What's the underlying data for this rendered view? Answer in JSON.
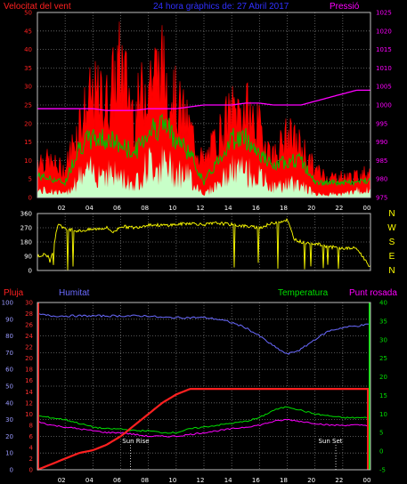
{
  "header": {
    "left": "Velocitat del vent",
    "center": "24 hora gràphics de:   27 Abril 2017",
    "right": "Pressió"
  },
  "colors": {
    "wind_max": "#ff0000",
    "wind_avg": "#00c000",
    "wind_min": "#c8ffc8",
    "pressure": "#ff00ff",
    "direction": "#ffff00",
    "rain": "#ff2020",
    "humidity": "#6a6aff",
    "temperature": "#00e000",
    "dewpoint": "#ff00ff",
    "grid": "#707070",
    "axis": "#c0c0c0"
  },
  "x_ticks": [
    "02",
    "04",
    "06",
    "08",
    "10",
    "12",
    "14",
    "16",
    "18",
    "20",
    "22",
    "00"
  ],
  "chart_data": [
    {
      "type": "area",
      "name": "wind",
      "left_axis": {
        "label": "Velocitat del vent",
        "ticks": [
          0,
          5,
          10,
          15,
          20,
          25,
          30,
          35,
          40,
          45,
          50
        ],
        "range": [
          0,
          50
        ]
      },
      "right_axis": {
        "label": "Pressió",
        "ticks": [
          975,
          980,
          985,
          990,
          995,
          1000,
          1005,
          1010,
          1015,
          1020,
          1025
        ],
        "range": [
          975,
          1025
        ]
      },
      "x_hours": [
        0,
        1,
        2,
        3,
        4,
        5,
        6,
        7,
        8,
        9,
        10,
        11,
        12,
        13,
        14,
        15,
        16,
        17,
        18,
        19,
        20,
        21,
        22,
        23,
        24
      ],
      "gust": [
        12,
        10,
        8,
        22,
        30,
        28,
        40,
        24,
        36,
        38,
        28,
        20,
        10,
        18,
        25,
        26,
        20,
        12,
        18,
        15,
        8,
        6,
        6,
        6,
        8
      ],
      "average": [
        6,
        5,
        4,
        14,
        16,
        16,
        14,
        12,
        18,
        20,
        16,
        12,
        4,
        10,
        16,
        16,
        12,
        8,
        10,
        10,
        4,
        4,
        4,
        4,
        5
      ],
      "minimum": [
        2,
        2,
        1,
        6,
        8,
        8,
        6,
        4,
        10,
        10,
        8,
        6,
        1,
        4,
        8,
        8,
        6,
        3,
        4,
        4,
        1,
        1,
        1,
        2,
        2
      ],
      "pressure": [
        999,
        999,
        999,
        999,
        999,
        998.5,
        998.5,
        998.5,
        999,
        999,
        999,
        999.5,
        1000,
        1000,
        1000,
        1000.5,
        1000.5,
        1000,
        1000,
        1000,
        1001,
        1002,
        1003,
        1004,
        1004
      ],
      "grid": true
    },
    {
      "type": "scatter",
      "name": "direction",
      "left_axis": {
        "ticks": [
          0,
          90,
          180,
          270,
          360
        ],
        "range": [
          0,
          360
        ]
      },
      "right_axis": {
        "labels": [
          "N",
          "W",
          "S",
          "E",
          "N"
        ]
      },
      "x_hours": [
        0,
        0.5,
        1,
        1.5,
        2,
        3,
        4,
        5,
        5.5,
        6,
        7,
        8,
        9,
        10,
        11,
        12,
        13,
        14,
        15,
        16,
        17,
        18,
        18.5,
        19,
        20,
        21,
        22,
        23,
        23.5,
        24
      ],
      "values": [
        90,
        100,
        80,
        300,
        260,
        250,
        260,
        270,
        240,
        280,
        270,
        290,
        285,
        290,
        300,
        290,
        300,
        290,
        280,
        270,
        300,
        320,
        200,
        180,
        170,
        150,
        140,
        140,
        80,
        20
      ],
      "grid": true
    },
    {
      "type": "line",
      "name": "climate",
      "labels": {
        "rain": "Pluja",
        "humidity": "Humitat",
        "temperature": "Temperatura",
        "dewpoint": "Punt rosada"
      },
      "humidity_axis": {
        "ticks": [
          0,
          10,
          20,
          30,
          40,
          50,
          60,
          70,
          80,
          90,
          100
        ],
        "range": [
          0,
          100
        ]
      },
      "rain_axis": {
        "ticks": [
          0,
          2,
          4,
          6,
          8,
          10,
          12,
          14,
          16,
          18,
          20,
          22,
          24,
          26,
          28,
          30
        ],
        "range": [
          0,
          30
        ]
      },
      "temp_axis": {
        "ticks": [
          -5,
          0,
          5,
          10,
          15,
          20,
          25,
          30,
          35,
          40
        ],
        "range": [
          -5,
          40
        ]
      },
      "x_hours": [
        0,
        1,
        2,
        3,
        4,
        5,
        6,
        7,
        8,
        9,
        10,
        11,
        12,
        13,
        14,
        15,
        16,
        17,
        18,
        19,
        20,
        21,
        22,
        23,
        24
      ],
      "humidity": [
        93,
        92,
        92,
        92,
        92,
        92,
        92,
        92,
        92,
        91,
        91,
        91,
        91,
        90,
        88,
        85,
        80,
        74,
        69,
        72,
        78,
        83,
        85,
        86,
        87
      ],
      "rain_mm": [
        0,
        1,
        2,
        3,
        3.5,
        4.5,
        6,
        8,
        10,
        12,
        13.5,
        14.5,
        14.5,
        14.5,
        14.5,
        14.5,
        14.5,
        14.5,
        14.5,
        14.5,
        14.5,
        14.5,
        14.5,
        14.5,
        14.5
      ],
      "temperature": [
        9.5,
        9,
        8.5,
        7.5,
        6.5,
        6,
        6,
        5.5,
        5.5,
        5,
        5,
        6,
        6.5,
        7,
        7.5,
        8,
        9,
        11,
        12,
        11,
        10,
        9.5,
        9,
        9,
        9
      ],
      "dewpoint": [
        8,
        7,
        6.5,
        6,
        5.5,
        5,
        5,
        4.5,
        4,
        4,
        4,
        4.5,
        5,
        5.5,
        6,
        6.5,
        7,
        8,
        8.5,
        8,
        7.5,
        7,
        7,
        7,
        7
      ],
      "annotations": [
        "Sun Rise",
        "Sun Set"
      ],
      "grid": true
    }
  ]
}
